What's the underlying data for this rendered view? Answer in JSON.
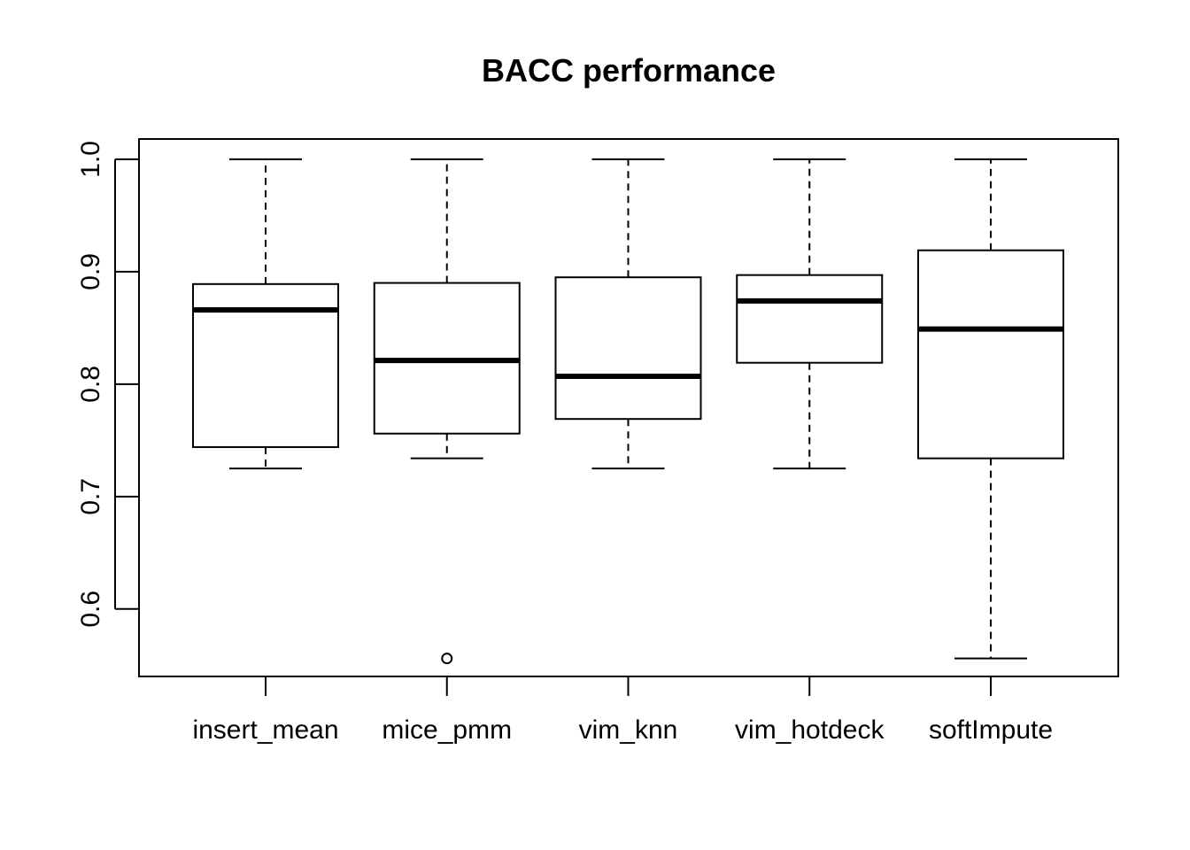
{
  "chart_data": {
    "type": "box",
    "title": "BACC performance",
    "xlabel": "",
    "ylabel": "",
    "categories": [
      "insert_mean",
      "mice_pmm",
      "vim_knn",
      "vim_hotdeck",
      "softImpute"
    ],
    "ylim": [
      0.54,
      1.018
    ],
    "yticks": [
      0.6,
      0.7,
      0.8,
      0.9,
      1.0
    ],
    "ytick_labels": [
      "0.6",
      "0.7",
      "0.8",
      "0.9",
      "1.0"
    ],
    "boxes": [
      {
        "category": "insert_mean",
        "whisker_low": 0.725,
        "q1": 0.744,
        "median": 0.866,
        "q3": 0.889,
        "whisker_high": 1.0,
        "outliers": []
      },
      {
        "category": "mice_pmm",
        "whisker_low": 0.734,
        "q1": 0.756,
        "median": 0.821,
        "q3": 0.89,
        "whisker_high": 1.0,
        "outliers": [
          0.556
        ]
      },
      {
        "category": "vim_knn",
        "whisker_low": 0.725,
        "q1": 0.769,
        "median": 0.807,
        "q3": 0.895,
        "whisker_high": 1.0,
        "outliers": []
      },
      {
        "category": "vim_hotdeck",
        "whisker_low": 0.725,
        "q1": 0.819,
        "median": 0.874,
        "q3": 0.897,
        "whisker_high": 1.0,
        "outliers": []
      },
      {
        "category": "softImpute",
        "whisker_low": 0.556,
        "q1": 0.734,
        "median": 0.849,
        "q3": 0.919,
        "whisker_high": 1.0,
        "outliers": []
      }
    ],
    "grid": false,
    "legend": "none",
    "colors": {
      "line": "#000000",
      "box_fill": "#ffffff",
      "background": "#ffffff"
    }
  }
}
